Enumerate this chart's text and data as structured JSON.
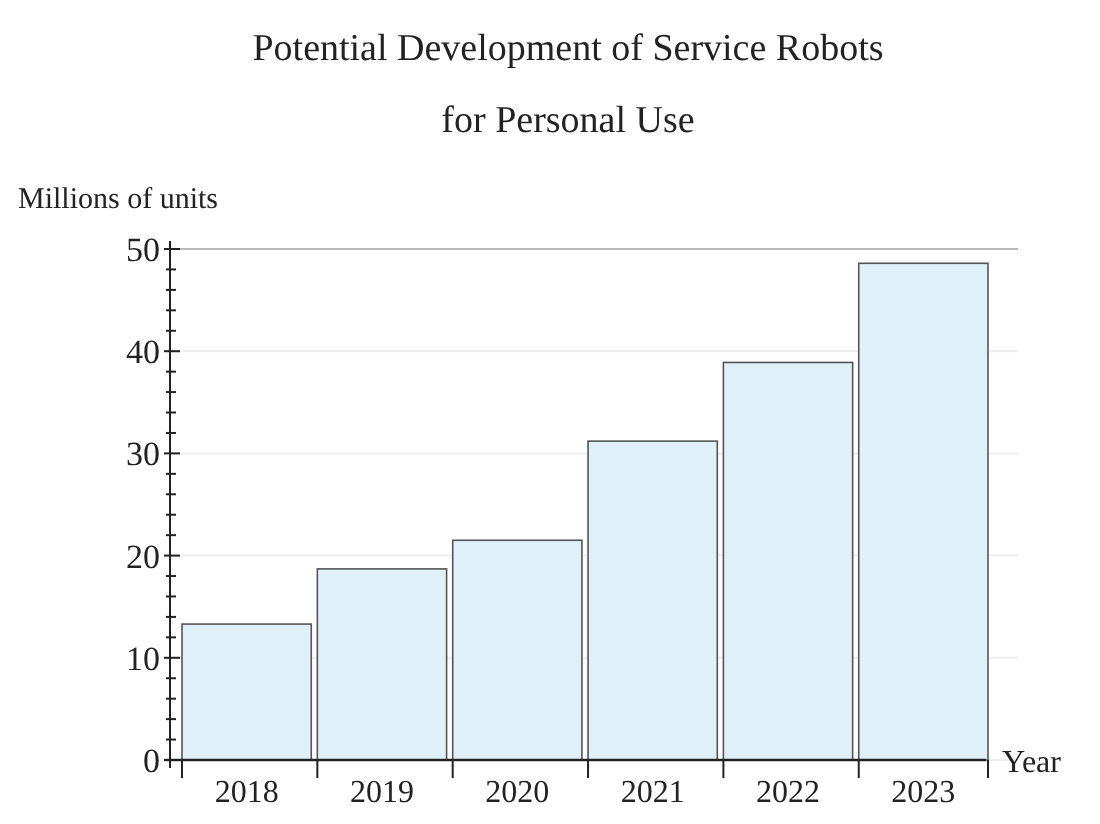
{
  "chart_data": {
    "type": "bar",
    "title": "Potential Development of Service Robots\nfor Personal Use",
    "ylabel": "Millions of units",
    "xlabel": "Year",
    "categories": [
      "2018",
      "2019",
      "2020",
      "2021",
      "2022",
      "2023"
    ],
    "values": [
      13.3,
      18.7,
      21.5,
      31.2,
      38.9,
      48.6
    ],
    "color": "#dff0f8",
    "ylim": [
      0,
      50
    ],
    "yticks": [
      0,
      {
        "value": 2,
        "label": null
      },
      {
        "value": 4,
        "label": null
      },
      {
        "value": 6,
        "label": null
      },
      {
        "value": 8,
        "label": null
      },
      10,
      {
        "value": 12,
        "label": null
      },
      {
        "value": 14,
        "label": null
      },
      {
        "value": 16,
        "label": null
      },
      {
        "value": 18,
        "label": null
      },
      20,
      {
        "value": 22,
        "label": null
      },
      {
        "value": 24,
        "label": null
      },
      {
        "value": 26,
        "label": null
      },
      {
        "value": 28,
        "label": null
      },
      30,
      {
        "value": 32,
        "label": null
      },
      {
        "value": 34,
        "label": null
      },
      {
        "value": 36,
        "label": null
      },
      {
        "value": 38,
        "label": null
      },
      40,
      {
        "value": 42,
        "label": null
      },
      {
        "value": 44,
        "label": null
      },
      {
        "value": 46,
        "label": null
      },
      {
        "value": 48,
        "label": null
      },
      50
    ],
    "grid": "y"
  }
}
